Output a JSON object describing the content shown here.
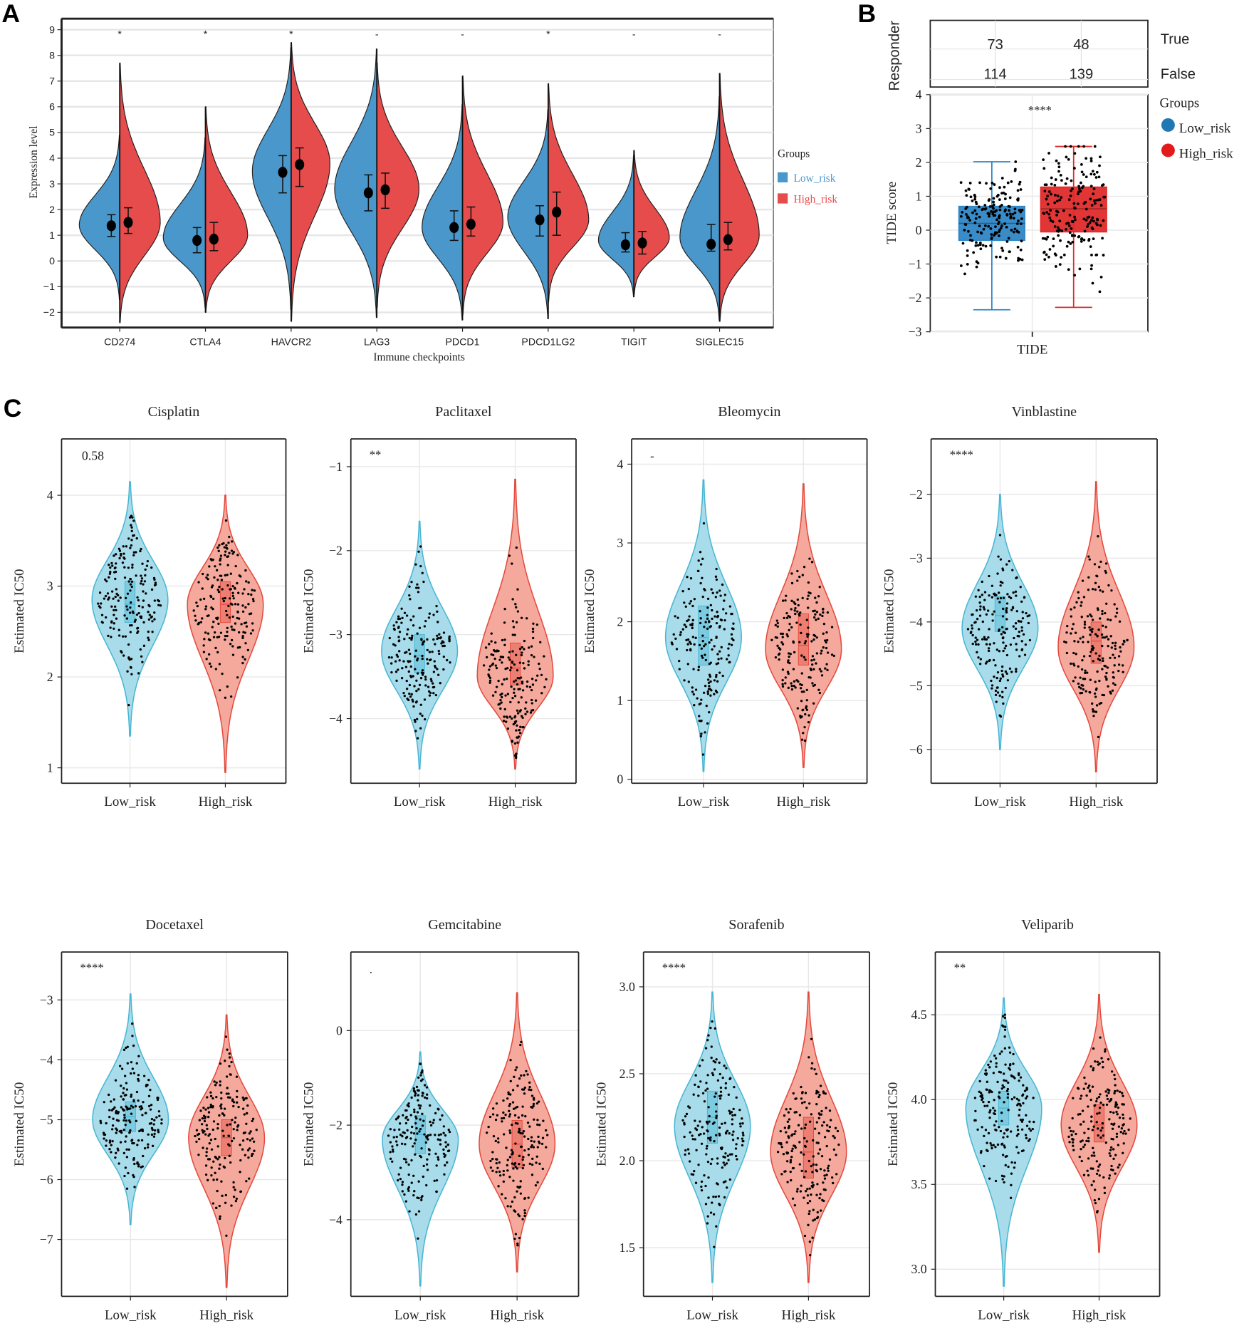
{
  "panel_letters": [
    "A",
    "B",
    "C"
  ],
  "chart_data": [
    {
      "id": "A",
      "type": "split-violin",
      "xlabel": "Immune checkpoints",
      "ylabel": "Expression level",
      "ylim": [
        -2.5,
        9.5
      ],
      "yticks": [
        -2,
        -1,
        0,
        1,
        2,
        3,
        4,
        5,
        6,
        7,
        8,
        9
      ],
      "grid": true,
      "legend": {
        "title": "Groups",
        "placement": "right",
        "entries": [
          {
            "label": "Low_risk",
            "color": "#4a98cb"
          },
          {
            "label": "High_risk",
            "color": "#e64c4c"
          }
        ]
      },
      "categories": [
        "CD274",
        "CTLA4",
        "HAVCR2",
        "LAG3",
        "PDCD1",
        "PDCD1LG2",
        "TIGIT",
        "SIGLEC15"
      ],
      "significance": [
        "*",
        "*",
        "*",
        "-",
        "-",
        "*",
        "-",
        "-"
      ],
      "series": [
        {
          "name": "Low_risk",
          "color": "#4a98cb",
          "mode": [
            1.4,
            0.9,
            3.5,
            2.8,
            1.3,
            1.7,
            0.8,
            0.9
          ],
          "min": [
            -1.5,
            -1.8,
            -1.9,
            -2.2,
            -2.3,
            -2.25,
            -1.4,
            -2.3
          ],
          "max": [
            4.9,
            4.8,
            8.3,
            8.25,
            6.1,
            5.9,
            4.1,
            6.4
          ],
          "mean": [
            1.37,
            0.8,
            3.45,
            2.65,
            1.3,
            1.6,
            0.63,
            0.65
          ],
          "err_low": [
            0.95,
            0.32,
            2.65,
            1.95,
            0.8,
            0.97,
            0.35,
            0.38
          ],
          "err_high": [
            1.8,
            1.3,
            4.1,
            3.35,
            1.95,
            2.15,
            1.1,
            1.42
          ]
        },
        {
          "name": "High_risk",
          "color": "#e64c4c",
          "mode": [
            1.5,
            1.0,
            3.8,
            2.8,
            1.5,
            1.6,
            0.9,
            1.0
          ],
          "min": [
            -2.4,
            -2.0,
            -2.35,
            -1.8,
            -2.1,
            -1.6,
            -1.3,
            -2.35
          ],
          "max": [
            7.7,
            6.0,
            8.5,
            7.7,
            7.2,
            6.9,
            4.3,
            7.3
          ],
          "mean": [
            1.5,
            0.85,
            3.75,
            2.77,
            1.43,
            1.9,
            0.7,
            0.83
          ],
          "err_low": [
            1.07,
            0.4,
            2.9,
            2.05,
            0.97,
            1.0,
            0.27,
            0.43
          ],
          "err_high": [
            2.07,
            1.5,
            4.4,
            3.42,
            2.1,
            2.68,
            1.15,
            1.5
          ]
        }
      ]
    },
    {
      "id": "B",
      "type": "box",
      "table": {
        "ylabel": "Responder",
        "rows": [
          "True",
          "False"
        ],
        "values": [
          [
            73,
            48
          ],
          [
            114,
            139
          ]
        ]
      },
      "xlabel": "TIDE",
      "ylabel": "TIDE score",
      "ylim": [
        -3,
        4
      ],
      "yticks": [
        -3,
        -2,
        -1,
        0,
        1,
        2,
        3,
        4
      ],
      "ytick_labels": [
        "−3",
        "−2",
        "−1",
        "0",
        "1",
        "2",
        "3",
        "4"
      ],
      "significance": "****",
      "legend": {
        "title": "Groups",
        "placement": "right",
        "entries": [
          {
            "label": "Low_risk",
            "color": "#1f77b4"
          },
          {
            "label": "High_risk",
            "color": "#e31a1c"
          }
        ]
      },
      "series": [
        {
          "name": "Low_risk",
          "color": "#2f86c6",
          "whisker_low": -2.35,
          "q1": -0.3,
          "median": 0.2,
          "q3": 0.7,
          "whisker_high": 2.02
        },
        {
          "name": "High_risk",
          "color": "#e02a2a",
          "whisker_low": -2.28,
          "q1": -0.05,
          "median": 0.63,
          "q3": 1.27,
          "whisker_high": 2.47
        }
      ]
    },
    {
      "id": "C",
      "type": "violin",
      "xlabel_categories": [
        "Low_risk",
        "High_risk"
      ],
      "ylabel": "Estimated IC50",
      "colors": {
        "low_fill": "#a8dcea",
        "low_stroke": "#47b6d4",
        "high_fill": "#f5a99d",
        "high_stroke": "#e5493d"
      },
      "plots": [
        {
          "title": "Cisplatin",
          "p": "0.58",
          "ylim": [
            0.83,
            4.62
          ],
          "yticks": [
            1,
            2,
            3,
            4
          ],
          "ytick_labels": [
            "1",
            "2",
            "3",
            "4"
          ],
          "low": {
            "min": 1.35,
            "max": 4.15,
            "mode": 2.85,
            "q1": 2.6,
            "median": 2.8,
            "q3": 3.05
          },
          "high": {
            "min": 0.95,
            "max": 4.0,
            "mode": 2.8,
            "q1": 2.6,
            "median": 2.8,
            "q3": 3.05
          }
        },
        {
          "title": "Paclitaxel",
          "p": "**",
          "ylim": [
            -4.77,
            -0.67
          ],
          "yticks": [
            -4,
            -3,
            -2,
            -1
          ],
          "ytick_labels": [
            "−4",
            "−3",
            "−2",
            "−1"
          ],
          "low": {
            "min": -4.6,
            "max": -1.65,
            "mode": -3.2,
            "q1": -3.45,
            "median": -3.25,
            "q3": -3.0
          },
          "high": {
            "min": -4.6,
            "max": -1.15,
            "mode": -3.5,
            "q1": -3.6,
            "median": -3.4,
            "q3": -3.1
          }
        },
        {
          "title": "Bleomycin",
          "p": "-",
          "ylim": [
            -0.05,
            4.32
          ],
          "yticks": [
            0,
            1,
            2,
            3,
            4
          ],
          "ytick_labels": [
            "0",
            "1",
            "2",
            "3",
            "4"
          ],
          "low": {
            "min": 0.1,
            "max": 3.8,
            "mode": 1.8,
            "q1": 1.45,
            "median": 1.8,
            "q3": 2.2
          },
          "high": {
            "min": 0.15,
            "max": 3.75,
            "mode": 1.65,
            "q1": 1.45,
            "median": 1.7,
            "q3": 2.1
          }
        },
        {
          "title": "Vinblastine",
          "p": "****",
          "ylim": [
            -6.53,
            -1.13
          ],
          "yticks": [
            -6,
            -5,
            -4,
            -3,
            -2
          ],
          "ytick_labels": [
            "−6",
            "−5",
            "−4",
            "−3",
            "−2"
          ],
          "low": {
            "min": -6.0,
            "max": -2.0,
            "mode": -4.1,
            "q1": -4.15,
            "median": -3.9,
            "q3": -3.6
          },
          "high": {
            "min": -6.35,
            "max": -1.8,
            "mode": -4.4,
            "q1": -4.65,
            "median": -4.3,
            "q3": -4.0
          }
        },
        {
          "title": "Docetaxel",
          "p": "****",
          "ylim": [
            -7.95,
            -2.2
          ],
          "yticks": [
            -7,
            -6,
            -5,
            -4,
            -3
          ],
          "ytick_labels": [
            "−7",
            "−6",
            "−5",
            "−4",
            "−3"
          ],
          "low": {
            "min": -6.75,
            "max": -2.9,
            "mode": -5.0,
            "q1": -5.2,
            "median": -4.95,
            "q3": -4.7
          },
          "high": {
            "min": -7.8,
            "max": -3.25,
            "mode": -5.3,
            "q1": -5.6,
            "median": -5.3,
            "q3": -5.0
          }
        },
        {
          "title": "Gemcitabine",
          "p": ".",
          "ylim": [
            -5.62,
            1.66
          ],
          "yticks": [
            -4,
            -2,
            0
          ],
          "ytick_labels": [
            "−4",
            "−2",
            "0"
          ],
          "low": {
            "min": -5.4,
            "max": -0.45,
            "mode": -2.3,
            "q1": -2.6,
            "median": -2.2,
            "q3": -1.8
          },
          "high": {
            "min": -5.1,
            "max": 0.8,
            "mode": -2.4,
            "q1": -2.9,
            "median": -2.4,
            "q3": -1.9
          }
        },
        {
          "title": "Sorafenib",
          "p": "****",
          "ylim": [
            1.22,
            3.2
          ],
          "yticks": [
            1.5,
            2.0,
            2.5,
            3.0
          ],
          "ytick_labels": [
            "1.5",
            "2.0",
            "2.5",
            "3.0"
          ],
          "low": {
            "min": 1.3,
            "max": 2.97,
            "mode": 2.2,
            "q1": 2.1,
            "median": 2.25,
            "q3": 2.4
          },
          "high": {
            "min": 1.3,
            "max": 2.97,
            "mode": 2.05,
            "q1": 1.9,
            "median": 2.05,
            "q3": 2.25
          }
        },
        {
          "title": "Veliparib",
          "p": "**",
          "ylim": [
            2.84,
            4.87
          ],
          "yticks": [
            3.0,
            3.5,
            4.0,
            4.5
          ],
          "ytick_labels": [
            "3.0",
            "3.5",
            "4.0",
            "4.5"
          ],
          "low": {
            "min": 2.9,
            "max": 4.6,
            "mode": 3.95,
            "q1": 3.85,
            "median": 3.95,
            "q3": 4.05
          },
          "high": {
            "min": 3.1,
            "max": 4.62,
            "mode": 3.85,
            "q1": 3.75,
            "median": 3.85,
            "q3": 3.97
          }
        }
      ]
    }
  ]
}
